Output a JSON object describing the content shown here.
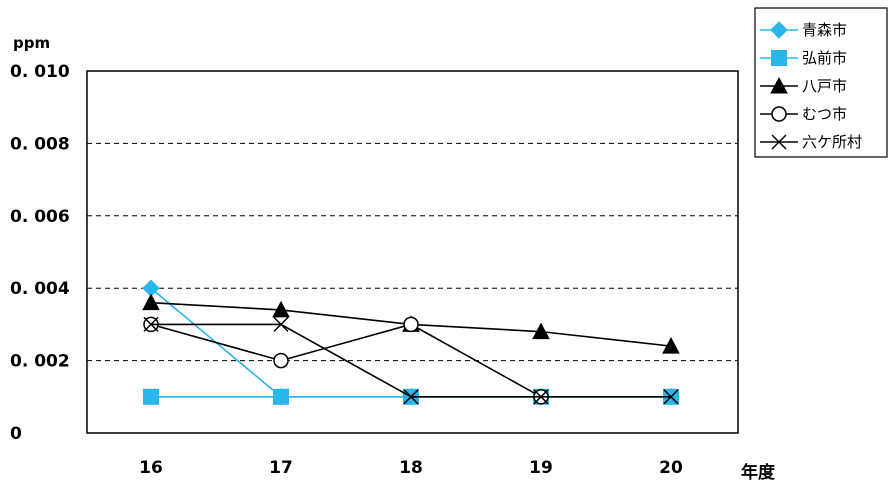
{
  "chart_data": {
    "type": "line",
    "ylabel": "ppm",
    "xlabel": "年度",
    "ylim": [
      0,
      0.01
    ],
    "yticks": [
      "0",
      "0. 002",
      "0. 004",
      "0. 006",
      "0. 008",
      "0. 010"
    ],
    "ytick_values": [
      0,
      0.002,
      0.004,
      0.006,
      0.008,
      0.01
    ],
    "categories": [
      "16",
      "17",
      "18",
      "19",
      "20"
    ],
    "grid": "horizontal dashed",
    "legend_position": "top-right",
    "series": [
      {
        "name": "青森市",
        "color": "#29b6e8",
        "marker": "diamond",
        "values": [
          0.004,
          0.001,
          0.001,
          0.001,
          0.001
        ]
      },
      {
        "name": "弘前市",
        "color": "#29b6e8",
        "marker": "square",
        "values": [
          0.001,
          0.001,
          0.001,
          0.001,
          0.001
        ]
      },
      {
        "name": "八戸市",
        "color": "#000000",
        "marker": "triangle",
        "values": [
          0.0036,
          0.0034,
          0.003,
          0.0028,
          0.0024
        ]
      },
      {
        "name": "むつ市",
        "color": "#000000",
        "marker": "circle",
        "values": [
          0.003,
          0.002,
          0.003,
          0.001,
          null
        ]
      },
      {
        "name": "六ケ所村",
        "color": "#000000",
        "marker": "x",
        "values": [
          0.003,
          0.003,
          0.001,
          0.001,
          0.001
        ]
      }
    ]
  }
}
